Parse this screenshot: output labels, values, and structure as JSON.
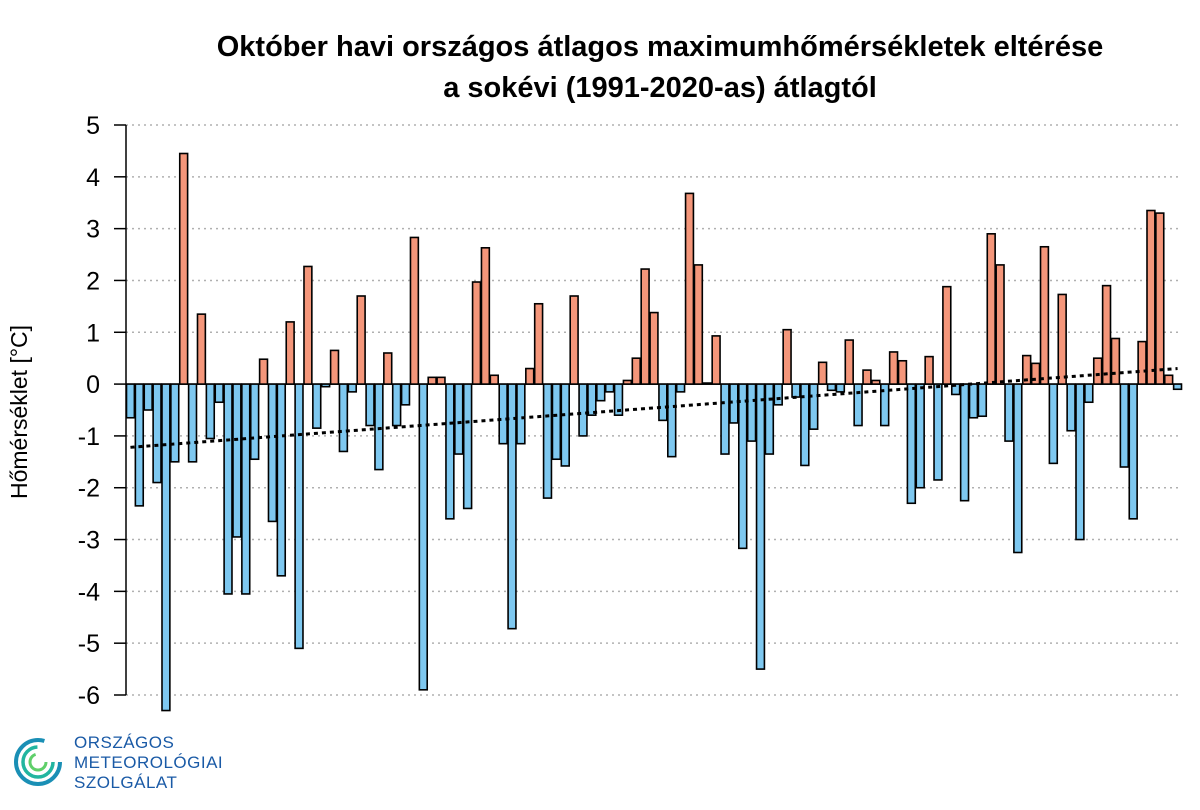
{
  "chart_data": {
    "type": "bar",
    "title": [
      "Október havi országos átlagos maximumhőmérsékletek eltérése",
      "a sokévi (1991-2020-as) átlagtól"
    ],
    "xlabel": "",
    "ylabel": "Hőmérséklet [°C]",
    "ylim": [
      -6,
      5
    ],
    "yticks": [
      5,
      4,
      3,
      2,
      1,
      0,
      -1,
      -2,
      -3,
      -4,
      -5,
      -6
    ],
    "grid": "horizontal-dotted",
    "colors": {
      "positive": "#f4967a",
      "negative": "#7ec8f0",
      "outline": "#000000",
      "grid": "#b0b0b0",
      "trend": "#000000"
    },
    "values": [
      -0.65,
      -2.35,
      -0.5,
      -1.9,
      -6.3,
      -1.5,
      4.45,
      -1.5,
      1.35,
      -1.05,
      -0.35,
      -4.05,
      -2.95,
      -4.05,
      -1.45,
      0.48,
      -2.65,
      -3.7,
      1.2,
      -5.1,
      2.27,
      -0.85,
      -0.05,
      0.65,
      -1.3,
      -0.15,
      1.7,
      -0.8,
      -1.65,
      0.6,
      -0.8,
      -0.4,
      2.83,
      -5.9,
      0.13,
      0.13,
      -2.6,
      -1.35,
      -2.4,
      1.97,
      2.63,
      0.17,
      -1.15,
      -4.72,
      -1.15,
      0.3,
      1.55,
      -2.2,
      -1.45,
      -1.58,
      1.7,
      -1.0,
      -0.6,
      -0.32,
      -0.15,
      -0.6,
      0.07,
      0.5,
      2.22,
      1.38,
      -0.7,
      -1.4,
      -0.15,
      3.68,
      2.3,
      0.02,
      0.93,
      -1.35,
      -0.75,
      -3.17,
      -1.1,
      -5.5,
      -1.35,
      -0.4,
      1.05,
      -0.25,
      -1.57,
      -0.87,
      0.42,
      -0.12,
      -0.15,
      0.85,
      -0.8,
      0.27,
      0.07,
      -0.8,
      0.62,
      0.45,
      -2.3,
      -2.0,
      0.53,
      -1.85,
      1.88,
      -0.2,
      -2.25,
      -0.65,
      -0.62,
      2.9,
      2.3,
      -1.1,
      -3.25,
      0.55,
      0.4,
      2.65,
      -1.53,
      1.73,
      -0.9,
      -3.0,
      -0.35,
      0.5,
      1.9,
      0.88,
      -1.6,
      -2.6,
      0.82,
      3.35,
      3.3,
      0.17,
      -0.1
    ],
    "trend": {
      "start": -1.22,
      "end": 0.3
    }
  },
  "logo": {
    "line1": "ORSZÁGOS",
    "line2": "METEOROLÓGIAI",
    "line3": "SZOLGÁLAT"
  }
}
